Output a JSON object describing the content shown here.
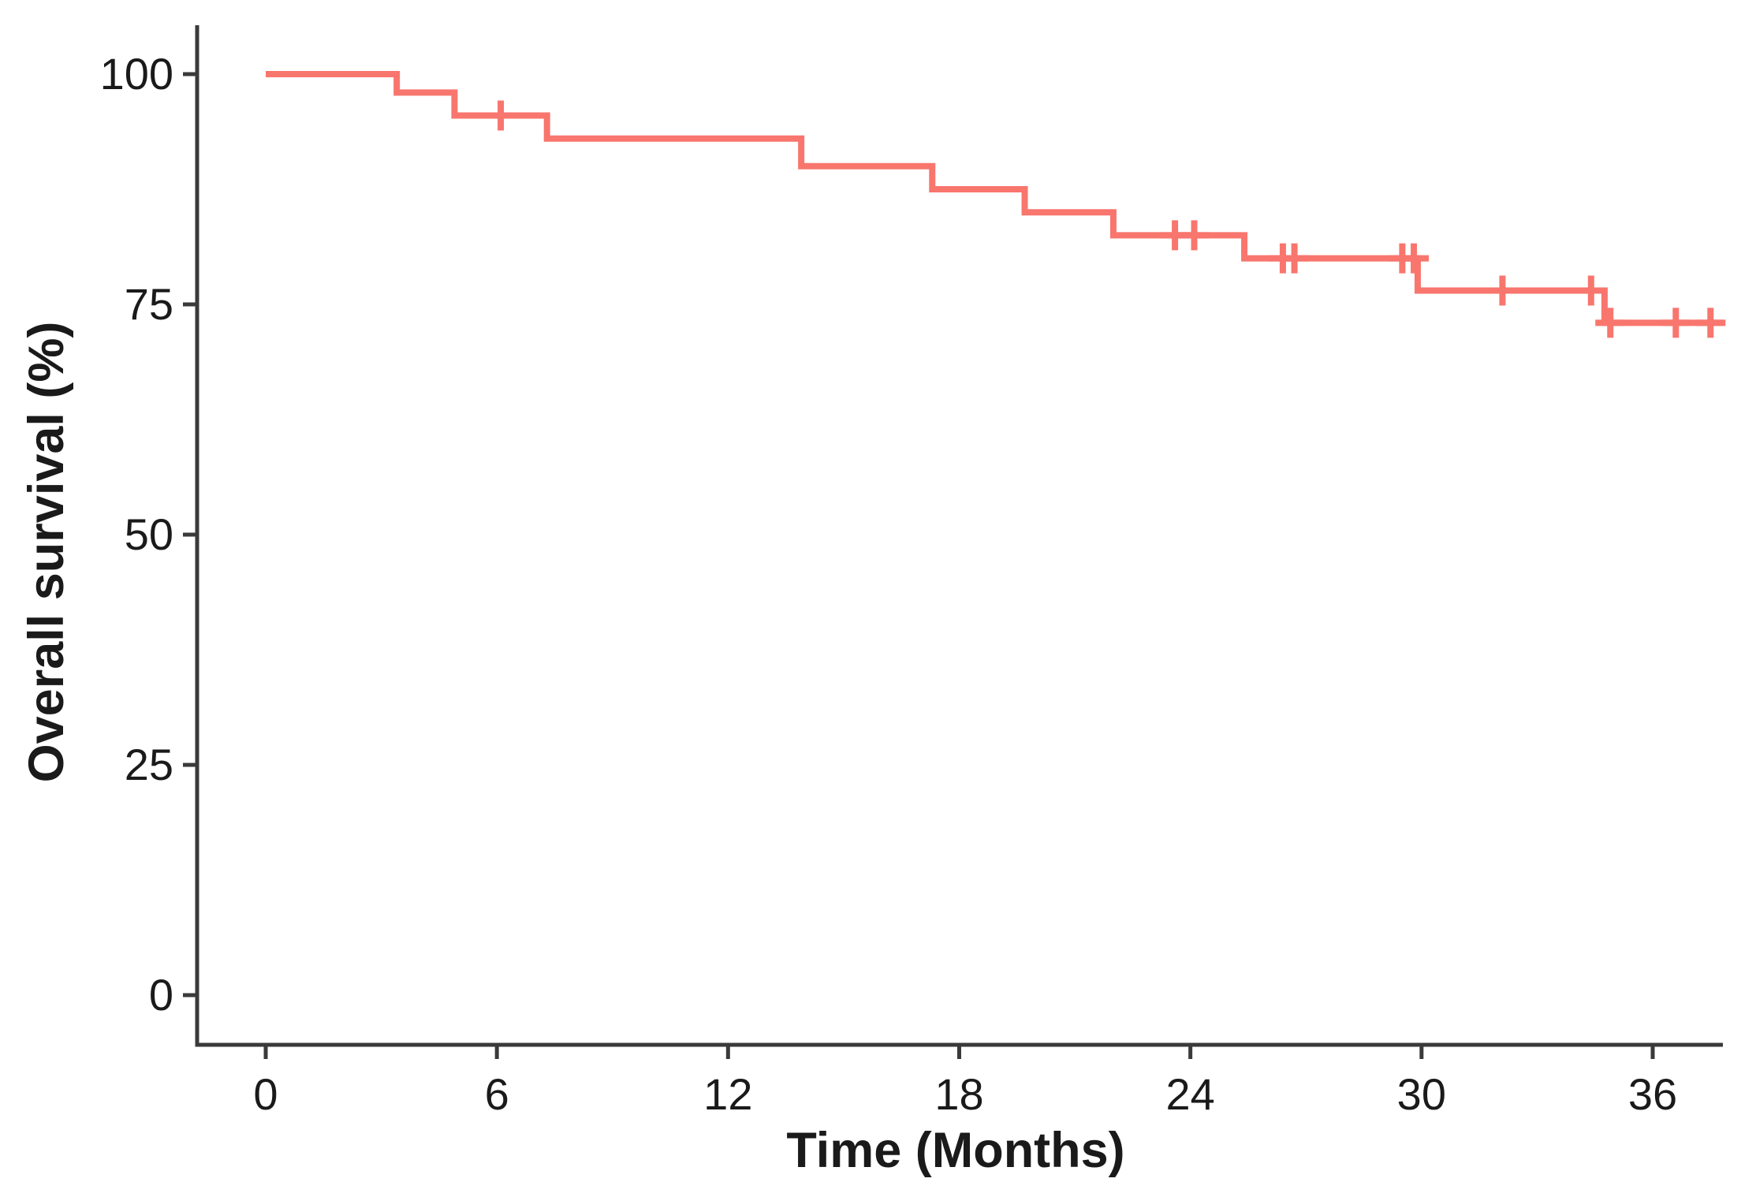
{
  "chart_data": {
    "type": "line",
    "subtype": "kaplan-meier-step-curve",
    "title": "",
    "xlabel": "Time (Months)",
    "ylabel": "Overall survival (%)",
    "xlim": [
      0,
      37.8
    ],
    "ylim": [
      0,
      105
    ],
    "x_ticks": [
      0,
      6,
      12,
      18,
      24,
      30,
      36
    ],
    "y_ticks": [
      0,
      25,
      50,
      75,
      100
    ],
    "grid": false,
    "legend_position": "none",
    "series": [
      {
        "name": "Overall survival",
        "color": "#F8766D",
        "steps": [
          {
            "t": 0,
            "s": 100
          },
          {
            "t": 3.4,
            "s": 98
          },
          {
            "t": 4.9,
            "s": 95.5
          },
          {
            "t": 7.3,
            "s": 93
          },
          {
            "t": 13.9,
            "s": 90
          },
          {
            "t": 17.3,
            "s": 87.5
          },
          {
            "t": 19.7,
            "s": 85
          },
          {
            "t": 22.0,
            "s": 82.5
          },
          {
            "t": 25.4,
            "s": 80
          },
          {
            "t": 29.9,
            "s": 76.5
          },
          {
            "t": 34.75,
            "s": 73
          }
        ],
        "end_time": 37.8,
        "censors": [
          {
            "t": 6.1,
            "s": 95.5
          },
          {
            "t": 23.6,
            "s": 82.5
          },
          {
            "t": 24.1,
            "s": 82.5
          },
          {
            "t": 26.4,
            "s": 80
          },
          {
            "t": 26.7,
            "s": 80
          },
          {
            "t": 29.5,
            "s": 80
          },
          {
            "t": 29.8,
            "s": 80
          },
          {
            "t": 32.1,
            "s": 76.5
          },
          {
            "t": 34.4,
            "s": 76.5
          },
          {
            "t": 34.9,
            "s": 73
          },
          {
            "t": 36.6,
            "s": 73
          },
          {
            "t": 37.5,
            "s": 73
          }
        ]
      }
    ]
  },
  "colors": {
    "curve": "#F8766D",
    "axis_line": "#3a3a3a",
    "text": "#1a1a1a",
    "background": "#ffffff"
  }
}
